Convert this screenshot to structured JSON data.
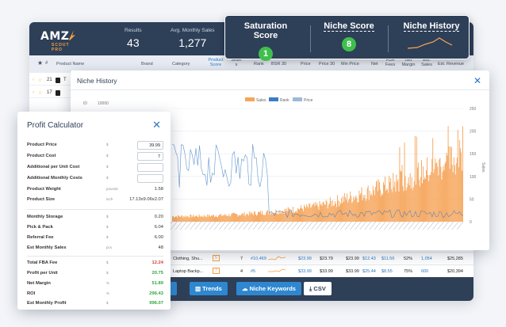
{
  "app": {
    "logo": {
      "text": "AMZ",
      "sub": "SCOUT PRO"
    },
    "metrics": [
      {
        "label": "Results",
        "value": "43"
      },
      {
        "label": "Avg. Monthly Sales",
        "value": "1,277"
      }
    ],
    "columns": [
      "Product Name",
      "Brand",
      "Category",
      "Product Score",
      "Seller s",
      "Rank",
      "BSR 30",
      "Price",
      "Price 30",
      "Min Price",
      "Net",
      "FBA Fees",
      "Net Margin",
      "Est. Sales",
      "Est. Revenue"
    ],
    "rows": [
      {
        "num": "21",
        "initial": "T"
      },
      {
        "num": "17",
        "initial": ""
      }
    ],
    "bottom_rows": [
      {
        "name": "Clothing, Shu...",
        "sellers": "7",
        "rank": "#10,469",
        "price": "$23.99",
        "price30": "$23.79",
        "min": "$23.99",
        "net": "$12.43",
        "fba": "$11.56",
        "margin": "52%",
        "sales": "1,054",
        "revenue": "$25,285"
      },
      {
        "name": "Laptop Backp...",
        "sellers": "4",
        "rank": "#5",
        "price": "$33.99",
        "price30": "$33.99",
        "min": "$33.99",
        "net": "$25.44",
        "fba": "$8.55",
        "margin": "75%",
        "sales": "600",
        "revenue": "$20,394"
      }
    ],
    "toolbar": {
      "trends": "Trends",
      "keywords": "Niche Keywords",
      "csv": "CSV"
    }
  },
  "scores": {
    "saturation": {
      "label": "Saturation Score",
      "value": "1"
    },
    "niche": {
      "label": "Niche Score",
      "value": "8"
    },
    "history": {
      "label": "Niche History"
    }
  },
  "history": {
    "title": "Niche History",
    "close": "✕"
  },
  "calculator": {
    "title": "Profit Calculator",
    "close": "✕",
    "inputs": [
      {
        "label": "Product Price",
        "unit": "$",
        "value": "39.99"
      },
      {
        "label": "Product Cost",
        "unit": "$",
        "value": "7"
      },
      {
        "label": "Additional per Unit Cost",
        "unit": "$",
        "value": ""
      },
      {
        "label": "Additional Monthly Costs",
        "unit": "$",
        "value": ""
      }
    ],
    "specs": [
      {
        "label": "Product Weight",
        "unit": "pounds",
        "value": "1.58"
      },
      {
        "label": "Product Size",
        "unit": "inch",
        "value": "17.13x9.06x2.07"
      }
    ],
    "fees": [
      {
        "label": "Monthly Storage",
        "unit": "$",
        "value": "0.20"
      },
      {
        "label": "Pick & Pack",
        "unit": "$",
        "value": "6.04"
      },
      {
        "label": "Referral Fee",
        "unit": "$",
        "value": "6.00"
      },
      {
        "label": "Est Monthly Sales",
        "unit": "pcs",
        "value": "48"
      }
    ],
    "results": [
      {
        "label": "Total FBA Fee",
        "unit": "$",
        "value": "12.24",
        "color": "red"
      },
      {
        "label": "Profit per Unit",
        "unit": "$",
        "value": "20.75",
        "color": "green"
      },
      {
        "label": "Net Margin",
        "unit": "%",
        "value": "51.89",
        "color": "green"
      },
      {
        "label": "ROI",
        "unit": "%",
        "value": "296.43",
        "color": "green"
      },
      {
        "label": "Est Monthly Profit",
        "unit": "$",
        "value": "996.07",
        "color": "green"
      }
    ]
  },
  "chart_data": {
    "type": "bar",
    "title": "",
    "legend": [
      "Sales",
      "Rank",
      "Price"
    ],
    "legend_placement": "top-center",
    "colors": {
      "Sales": "#f6a55a",
      "Rank": "#3b7cc4",
      "Price": "#9fb8d8"
    },
    "y_left_top_label": "10000",
    "y_left_axis_label": "ID",
    "y_right_ticks": [
      "250",
      "200",
      "150",
      "100",
      "50",
      "0"
    ],
    "y_right_axis_label": "Sales",
    "ylim_right": [
      0,
      250
    ],
    "x_tick_count": 61,
    "sales_start": 12,
    "sales_end": 200,
    "rank_trend": "decreasing",
    "series": [
      {
        "name": "Sales",
        "trend": "increasing from about 12 to about 200 (approximate)"
      },
      {
        "name": "Rank",
        "trend": "high early, fades after the first third (approximate)"
      }
    ]
  }
}
